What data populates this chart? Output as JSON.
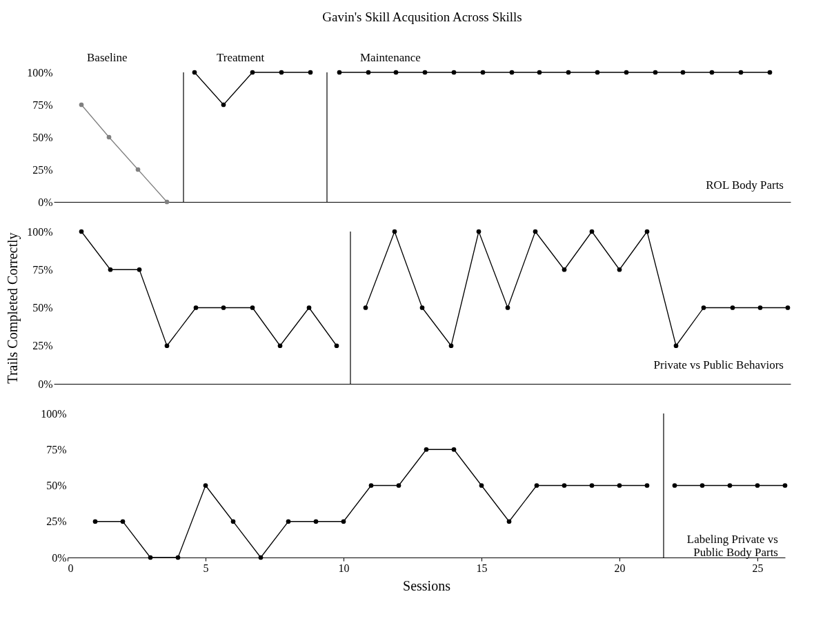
{
  "chart_data": [
    {
      "type": "line",
      "title": "Gavin's Skill Acqusition Across Skills",
      "marker": "circle",
      "line_style": "solid",
      "grid": false,
      "tick_labels": "y",
      "xlim": [
        -0.5,
        26.2
      ],
      "xticks": [
        0,
        5,
        10,
        15,
        20,
        25
      ],
      "ylim": [
        0,
        100
      ],
      "yticks": [
        {
          "value": 0,
          "label": "0%"
        },
        {
          "value": 25,
          "label": "25%"
        },
        {
          "value": 50,
          "label": "50%"
        },
        {
          "value": 75,
          "label": "75%"
        },
        {
          "value": 100,
          "label": "100%"
        }
      ],
      "series": [
        {
          "color": "#808080",
          "x": [
            0.5,
            1.5,
            2.55,
            3.6
          ],
          "values": [
            75,
            50,
            25,
            0
          ]
        },
        {
          "color": "#000000",
          "x": [
            4.6,
            5.65,
            6.7,
            7.75,
            8.8
          ],
          "values": [
            100,
            75,
            100,
            100,
            100
          ]
        },
        {
          "color": "#000000",
          "x": [
            9.85,
            10.9,
            11.9,
            12.95,
            14.0,
            15.05,
            16.1,
            17.1,
            18.15,
            19.2,
            20.25,
            21.3,
            22.3,
            23.35,
            24.4,
            25.45
          ],
          "values": [
            100,
            100,
            100,
            100,
            100,
            100,
            100,
            100,
            100,
            100,
            100,
            100,
            100,
            100,
            100,
            100
          ]
        }
      ],
      "ref_lines": [
        {
          "axis": "x",
          "value": 4.2,
          "color": "#000000"
        },
        {
          "axis": "x",
          "value": 9.4,
          "color": "#000000"
        }
      ],
      "annotations": [
        "Baseline",
        "Treatment",
        "Maintenance",
        "ROL Body Parts"
      ]
    },
    {
      "type": "line",
      "ylabel": "Trails Completed Correctly",
      "marker": "circle",
      "line_style": "solid",
      "grid": false,
      "tick_labels": "y",
      "xlim": [
        -0.5,
        26.2
      ],
      "xticks": [
        0,
        5,
        10,
        15,
        20,
        25
      ],
      "ylim": [
        0,
        100
      ],
      "yticks": [
        {
          "value": 0,
          "label": "0%"
        },
        {
          "value": 25,
          "label": "25%"
        },
        {
          "value": 50,
          "label": "50%"
        },
        {
          "value": 75,
          "label": "75%"
        },
        {
          "value": 100,
          "label": "100%"
        }
      ],
      "series": [
        {
          "color": "#000000",
          "x": [
            0.5,
            1.55,
            2.6,
            3.6,
            4.65,
            5.65,
            6.7,
            7.7,
            8.75,
            9.75
          ],
          "values": [
            100,
            75,
            75,
            25,
            50,
            50,
            50,
            25,
            50,
            25
          ]
        },
        {
          "color": "#000000",
          "x": [
            10.8,
            11.85,
            12.85,
            13.9,
            14.9,
            15.95,
            16.95,
            18.0,
            19.0,
            20.0,
            21.0,
            22.05,
            23.05,
            24.1,
            25.1,
            26.1
          ],
          "values": [
            50,
            100,
            50,
            25,
            100,
            50,
            100,
            75,
            100,
            75,
            100,
            25,
            50,
            50,
            50,
            50
          ]
        }
      ],
      "ref_lines": [
        {
          "axis": "x",
          "value": 10.25,
          "color": "#000000"
        }
      ],
      "annotations": [
        "Private vs Public Behaviors"
      ]
    },
    {
      "type": "line",
      "xlabel": "Sessions",
      "marker": "circle",
      "line_style": "solid",
      "grid": false,
      "xlim": [
        0,
        26
      ],
      "xticks": [
        0,
        5,
        10,
        15,
        20,
        25
      ],
      "ylim": [
        0,
        100
      ],
      "yticks": [
        {
          "value": 0,
          "label": "0%"
        },
        {
          "value": 25,
          "label": "25%"
        },
        {
          "value": 50,
          "label": "50%"
        },
        {
          "value": 75,
          "label": "75%"
        },
        {
          "value": 100,
          "label": "100%"
        }
      ],
      "series": [
        {
          "color": "#000000",
          "x": [
            1,
            2,
            3,
            4,
            5,
            6,
            7,
            8,
            9,
            10,
            11,
            12,
            13,
            14,
            15,
            16,
            17,
            18,
            19,
            20,
            21
          ],
          "values": [
            25,
            25,
            0,
            0,
            50,
            25,
            0,
            25,
            25,
            25,
            50,
            50,
            75,
            75,
            50,
            25,
            50,
            50,
            50,
            50,
            50
          ]
        },
        {
          "color": "#000000",
          "x": [
            22,
            23,
            24,
            25,
            26
          ],
          "values": [
            50,
            50,
            50,
            50,
            50
          ]
        }
      ],
      "ref_lines": [
        {
          "axis": "x",
          "value": 21.6,
          "color": "#000000"
        }
      ],
      "annotations": [
        "Labeling Private vs\nPublic Body Parts"
      ]
    }
  ]
}
